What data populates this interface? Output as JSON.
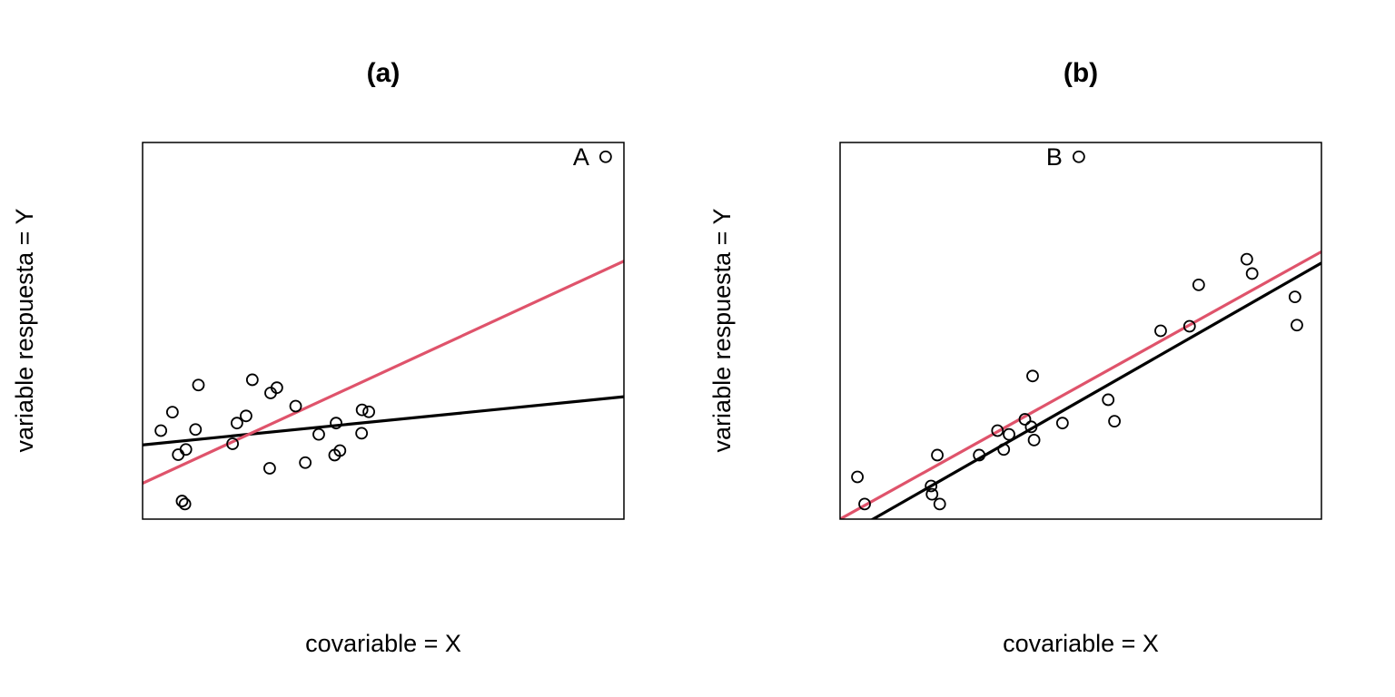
{
  "chart_data": [
    {
      "type": "scatter",
      "title": "(a)",
      "xlabel": "covariable = X",
      "ylabel": "variable respuesta = Y",
      "xlim": [
        0,
        10
      ],
      "ylim": [
        0,
        10
      ],
      "axes_visible": false,
      "grid": false,
      "legend": "none",
      "colors": {
        "points": "#000000",
        "fit_black": "#000000",
        "fit_red": "#DF536B"
      },
      "points": [
        {
          "x": 0.38,
          "y": 2.35
        },
        {
          "x": 0.62,
          "y": 2.84
        },
        {
          "x": 0.74,
          "y": 1.71
        },
        {
          "x": 0.82,
          "y": 0.48
        },
        {
          "x": 0.88,
          "y": 0.4
        },
        {
          "x": 0.9,
          "y": 1.85
        },
        {
          "x": 1.1,
          "y": 2.38
        },
        {
          "x": 1.16,
          "y": 3.56
        },
        {
          "x": 1.87,
          "y": 2.0
        },
        {
          "x": 1.96,
          "y": 2.55
        },
        {
          "x": 2.15,
          "y": 2.74
        },
        {
          "x": 2.28,
          "y": 3.7
        },
        {
          "x": 2.64,
          "y": 1.35
        },
        {
          "x": 2.66,
          "y": 3.35
        },
        {
          "x": 2.79,
          "y": 3.49
        },
        {
          "x": 3.18,
          "y": 3.0
        },
        {
          "x": 3.38,
          "y": 1.5
        },
        {
          "x": 3.66,
          "y": 2.25
        },
        {
          "x": 3.99,
          "y": 1.7
        },
        {
          "x": 4.02,
          "y": 2.55
        },
        {
          "x": 4.1,
          "y": 1.82
        },
        {
          "x": 4.55,
          "y": 2.28
        },
        {
          "x": 4.56,
          "y": 2.9
        },
        {
          "x": 4.7,
          "y": 2.85
        },
        {
          "x": 9.62,
          "y": 9.62,
          "label": "A"
        }
      ],
      "fits": [
        {
          "color": "black",
          "x": [
            0,
            10
          ],
          "y": [
            1.97,
            3.25
          ]
        },
        {
          "color": "red",
          "x": [
            0,
            10
          ],
          "y": [
            0.95,
            6.85
          ]
        }
      ]
    },
    {
      "type": "scatter",
      "title": "(b)",
      "xlabel": "covariable = X",
      "ylabel": "variable respuesta = Y",
      "xlim": [
        0,
        10
      ],
      "ylim": [
        0,
        10
      ],
      "axes_visible": false,
      "grid": false,
      "legend": "none",
      "colors": {
        "points": "#000000",
        "fit_black": "#000000",
        "fit_red": "#DF536B"
      },
      "points": [
        {
          "x": 0.36,
          "y": 1.12
        },
        {
          "x": 0.51,
          "y": 0.4
        },
        {
          "x": 1.89,
          "y": 0.88
        },
        {
          "x": 1.91,
          "y": 0.66
        },
        {
          "x": 2.02,
          "y": 1.7
        },
        {
          "x": 2.07,
          "y": 0.4
        },
        {
          "x": 2.89,
          "y": 1.7
        },
        {
          "x": 3.27,
          "y": 2.35
        },
        {
          "x": 3.4,
          "y": 1.85
        },
        {
          "x": 3.51,
          "y": 2.25
        },
        {
          "x": 3.84,
          "y": 2.65
        },
        {
          "x": 3.97,
          "y": 2.45
        },
        {
          "x": 4.0,
          "y": 3.8
        },
        {
          "x": 4.03,
          "y": 2.1
        },
        {
          "x": 4.62,
          "y": 2.55
        },
        {
          "x": 4.96,
          "y": 9.62,
          "label": "B"
        },
        {
          "x": 5.57,
          "y": 3.17
        },
        {
          "x": 5.7,
          "y": 2.6
        },
        {
          "x": 6.66,
          "y": 5.0
        },
        {
          "x": 7.26,
          "y": 5.12
        },
        {
          "x": 7.45,
          "y": 6.22
        },
        {
          "x": 8.45,
          "y": 6.9
        },
        {
          "x": 8.56,
          "y": 6.52
        },
        {
          "x": 9.45,
          "y": 5.9
        },
        {
          "x": 9.49,
          "y": 5.15
        }
      ],
      "fits": [
        {
          "color": "black",
          "x": [
            0,
            10
          ],
          "y": [
            -0.5,
            6.8
          ]
        },
        {
          "color": "red",
          "x": [
            0,
            10
          ],
          "y": [
            0.0,
            7.1
          ]
        }
      ]
    }
  ]
}
